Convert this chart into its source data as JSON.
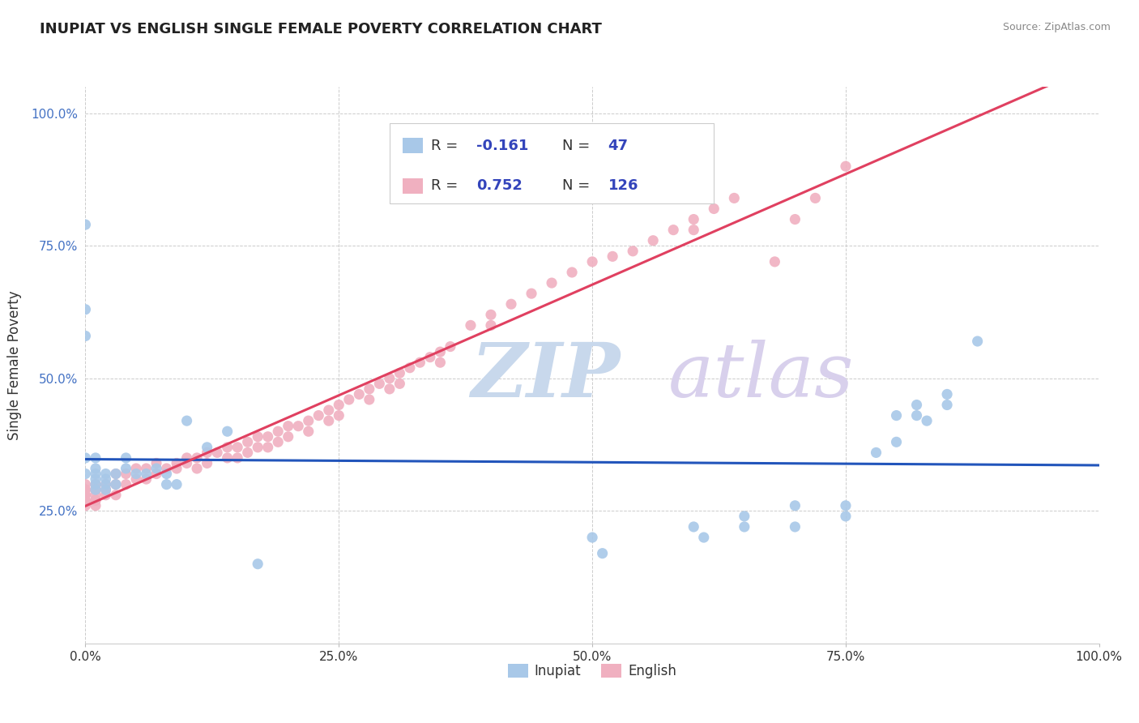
{
  "title": "INUPIAT VS ENGLISH SINGLE FEMALE POVERTY CORRELATION CHART",
  "source": "Source: ZipAtlas.com",
  "ylabel": "Single Female Poverty",
  "xlim": [
    0.0,
    1.0
  ],
  "ylim": [
    0.0,
    1.05
  ],
  "x_ticks": [
    0.0,
    0.25,
    0.5,
    0.75,
    1.0
  ],
  "x_tick_labels": [
    "0.0%",
    "25.0%",
    "50.0%",
    "75.0%",
    "100.0%"
  ],
  "y_ticks": [
    0.25,
    0.5,
    0.75,
    1.0
  ],
  "y_tick_labels": [
    "25.0%",
    "50.0%",
    "75.0%",
    "100.0%"
  ],
  "inupiat_color": "#a8c8e8",
  "english_color": "#f0b0c0",
  "inupiat_line_color": "#2255bb",
  "english_line_color": "#e04060",
  "watermark": "ZIPatlas",
  "watermark_color_zip": "#c0d0e0",
  "watermark_color_atlas": "#d0c8e8",
  "background_color": "#ffffff",
  "inupiat_x": [
    0.0,
    0.0,
    0.0,
    0.0,
    0.0,
    0.01,
    0.01,
    0.01,
    0.01,
    0.01,
    0.01,
    0.02,
    0.02,
    0.02,
    0.02,
    0.03,
    0.03,
    0.04,
    0.04,
    0.05,
    0.06,
    0.07,
    0.08,
    0.08,
    0.09,
    0.1,
    0.12,
    0.14,
    0.17,
    0.5,
    0.51,
    0.6,
    0.61,
    0.65,
    0.65,
    0.7,
    0.7,
    0.75,
    0.75,
    0.78,
    0.8,
    0.8,
    0.82,
    0.82,
    0.83,
    0.85,
    0.85,
    0.88
  ],
  "inupiat_y": [
    0.79,
    0.63,
    0.58,
    0.35,
    0.32,
    0.35,
    0.33,
    0.32,
    0.31,
    0.3,
    0.29,
    0.32,
    0.31,
    0.3,
    0.29,
    0.32,
    0.3,
    0.35,
    0.33,
    0.32,
    0.32,
    0.33,
    0.32,
    0.3,
    0.3,
    0.42,
    0.37,
    0.4,
    0.15,
    0.2,
    0.17,
    0.22,
    0.2,
    0.24,
    0.22,
    0.26,
    0.22,
    0.26,
    0.24,
    0.36,
    0.43,
    0.38,
    0.45,
    0.43,
    0.42,
    0.47,
    0.45,
    0.57
  ],
  "english_x": [
    0.0,
    0.0,
    0.0,
    0.0,
    0.0,
    0.0,
    0.0,
    0.0,
    0.01,
    0.01,
    0.01,
    0.01,
    0.01,
    0.01,
    0.02,
    0.02,
    0.02,
    0.03,
    0.03,
    0.03,
    0.04,
    0.04,
    0.05,
    0.05,
    0.06,
    0.06,
    0.07,
    0.07,
    0.08,
    0.09,
    0.09,
    0.1,
    0.1,
    0.11,
    0.11,
    0.12,
    0.12,
    0.13,
    0.14,
    0.14,
    0.15,
    0.15,
    0.16,
    0.16,
    0.17,
    0.17,
    0.18,
    0.18,
    0.19,
    0.19,
    0.2,
    0.2,
    0.21,
    0.22,
    0.22,
    0.23,
    0.24,
    0.24,
    0.25,
    0.25,
    0.26,
    0.27,
    0.28,
    0.28,
    0.29,
    0.3,
    0.3,
    0.31,
    0.31,
    0.32,
    0.33,
    0.34,
    0.35,
    0.35,
    0.36,
    0.38,
    0.4,
    0.4,
    0.42,
    0.44,
    0.46,
    0.48,
    0.5,
    0.52,
    0.54,
    0.56,
    0.58,
    0.6,
    0.6,
    0.62,
    0.64,
    0.68,
    0.7,
    0.72,
    0.75
  ],
  "english_y": [
    0.3,
    0.29,
    0.29,
    0.28,
    0.28,
    0.27,
    0.27,
    0.26,
    0.3,
    0.29,
    0.28,
    0.27,
    0.27,
    0.26,
    0.3,
    0.29,
    0.28,
    0.32,
    0.3,
    0.28,
    0.32,
    0.3,
    0.33,
    0.31,
    0.33,
    0.31,
    0.34,
    0.32,
    0.33,
    0.34,
    0.33,
    0.35,
    0.34,
    0.35,
    0.33,
    0.36,
    0.34,
    0.36,
    0.37,
    0.35,
    0.37,
    0.35,
    0.38,
    0.36,
    0.39,
    0.37,
    0.39,
    0.37,
    0.4,
    0.38,
    0.41,
    0.39,
    0.41,
    0.42,
    0.4,
    0.43,
    0.44,
    0.42,
    0.45,
    0.43,
    0.46,
    0.47,
    0.48,
    0.46,
    0.49,
    0.5,
    0.48,
    0.51,
    0.49,
    0.52,
    0.53,
    0.54,
    0.55,
    0.53,
    0.56,
    0.6,
    0.62,
    0.6,
    0.64,
    0.66,
    0.68,
    0.7,
    0.72,
    0.73,
    0.74,
    0.76,
    0.78,
    0.8,
    0.78,
    0.82,
    0.84,
    0.72,
    0.8,
    0.84,
    0.9
  ]
}
